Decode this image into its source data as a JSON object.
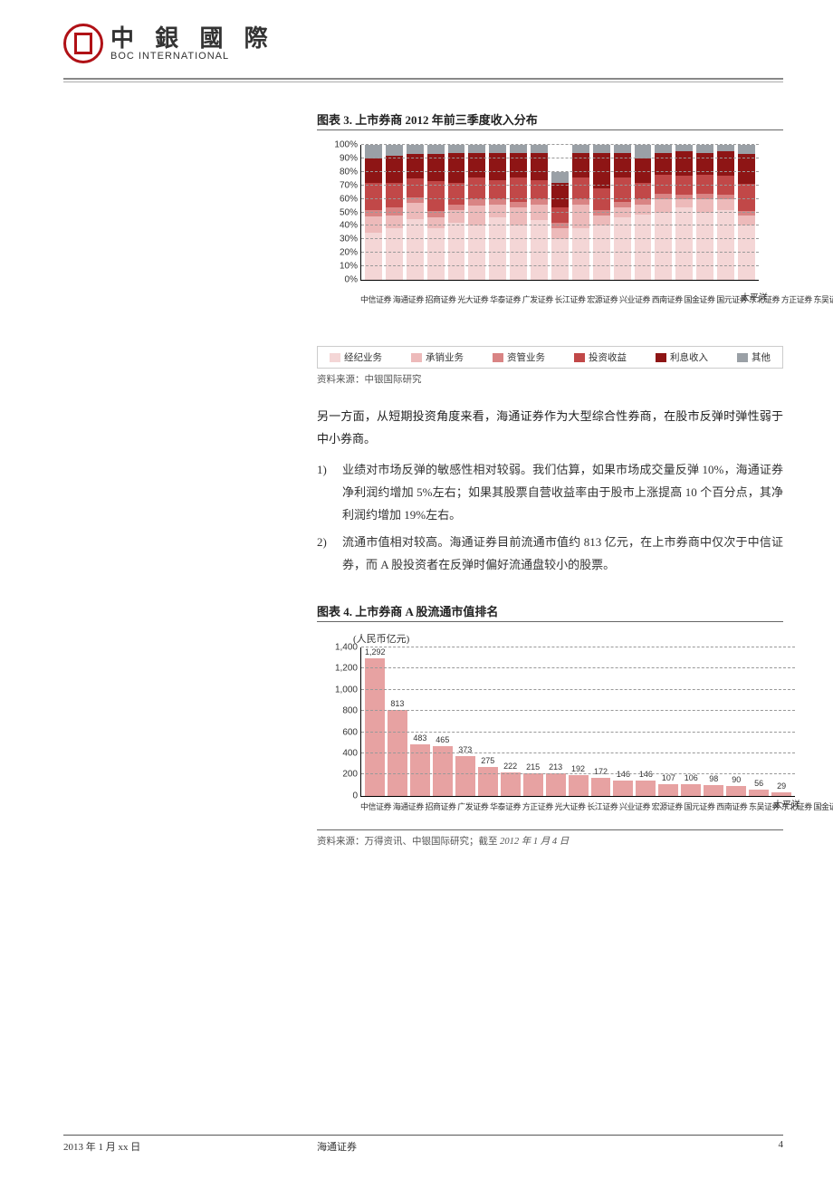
{
  "header": {
    "logo_cn": "中 銀 國 際",
    "logo_en": "BOC INTERNATIONAL"
  },
  "chart3": {
    "title": "图表 3. 上市券商 2012 年前三季度收入分布",
    "type": "stacked-bar",
    "ylim": [
      0,
      100
    ],
    "ytick_step": 10,
    "ytick_suffix": "%",
    "grid_color": "#999999",
    "background_color": "#ffffff",
    "bar_count": 19,
    "categories_condensed": "中信证券 海通证券 招商证券 光大证券 华泰证券 广发证券 长江证券 宏源证券 兴业证券 西南证券 国金证券 国元证券 东北证券 方正证券 东吴证券 西部证券 国海证券 山西证券 太平洋证券",
    "categories_far_label": "太平洋",
    "legend": [
      {
        "label": "经纪业务",
        "color": "#f4d6d6"
      },
      {
        "label": "承销业务",
        "color": "#edbaba"
      },
      {
        "label": "资管业务",
        "color": "#d98484"
      },
      {
        "label": "投资收益",
        "color": "#c14848"
      },
      {
        "label": "利息收入",
        "color": "#8e1515"
      },
      {
        "label": "其他",
        "color": "#9aa0a6"
      }
    ],
    "series_colors": [
      "#f4d6d6",
      "#edbaba",
      "#d98484",
      "#c14848",
      "#8e1515",
      "#9aa0a6"
    ],
    "stacks": [
      [
        35,
        12,
        5,
        20,
        18,
        10
      ],
      [
        38,
        10,
        6,
        18,
        20,
        8
      ],
      [
        45,
        12,
        4,
        14,
        18,
        7
      ],
      [
        38,
        8,
        5,
        22,
        20,
        7
      ],
      [
        42,
        10,
        4,
        16,
        22,
        6
      ],
      [
        40,
        15,
        5,
        16,
        18,
        6
      ],
      [
        46,
        10,
        4,
        14,
        20,
        6
      ],
      [
        40,
        14,
        4,
        18,
        18,
        6
      ],
      [
        44,
        12,
        4,
        14,
        20,
        6
      ],
      [
        30,
        8,
        4,
        12,
        18,
        8
      ],
      [
        38,
        18,
        4,
        16,
        18,
        6
      ],
      [
        40,
        8,
        4,
        16,
        26,
        6
      ],
      [
        46,
        8,
        4,
        18,
        18,
        6
      ],
      [
        48,
        8,
        4,
        12,
        18,
        10
      ],
      [
        50,
        10,
        4,
        14,
        16,
        6
      ],
      [
        54,
        6,
        3,
        14,
        18,
        5
      ],
      [
        50,
        10,
        4,
        14,
        16,
        6
      ],
      [
        52,
        8,
        3,
        14,
        18,
        5
      ],
      [
        40,
        8,
        3,
        20,
        22,
        7
      ]
    ],
    "source": "资料来源：中银国际研究"
  },
  "paragraph1": "另一方面，从短期投资角度来看，海通证券作为大型综合性券商，在股市反弹时弹性弱于中小券商。",
  "list": [
    {
      "num": "1)",
      "text": "业绩对市场反弹的敏感性相对较弱。我们估算，如果市场成交量反弹 10%，海通证券净利润约增加 5%左右；如果其股票自营收益率由于股市上涨提高 10 个百分点，其净利润约增加 19%左右。"
    },
    {
      "num": "2)",
      "text": "流通市值相对较高。海通证券目前流通市值约 813 亿元，在上市券商中仅次于中信证券，而 A 股投资者在反弹时偏好流通盘较小的股票。"
    }
  ],
  "chart4": {
    "title": "图表 4. 上市券商 A 股流通市值排名",
    "type": "bar",
    "y_axis_label": "(人民币亿元)",
    "ylim": [
      0,
      1400
    ],
    "ytick_step": 200,
    "background_color": "#ffffff",
    "grid_color": "#999999",
    "bar_color": "#e7a2a2",
    "categories_condensed": "中信证券 海通证券 招商证券 广发证券 华泰证券 方正证券 光大证券 长江证券 兴业证券 宏源证券 国元证券 西南证券 东吴证券 东北证券 国金证券 西部证券 山西证券 国海证券 太平洋证券",
    "categories_far_label": "太平洋",
    "values": [
      1292,
      813,
      483,
      465,
      373,
      275,
      222,
      215,
      213,
      192,
      172,
      146,
      146,
      107,
      106,
      98,
      90,
      56,
      29
    ],
    "source_prefix": "资料来源：万得资讯、中银国际研究；截至 ",
    "source_date": "2012 年 1 月 4 日"
  },
  "footer": {
    "date": "2013 年 1 月 xx 日",
    "company": "海通证券",
    "page": "4"
  }
}
